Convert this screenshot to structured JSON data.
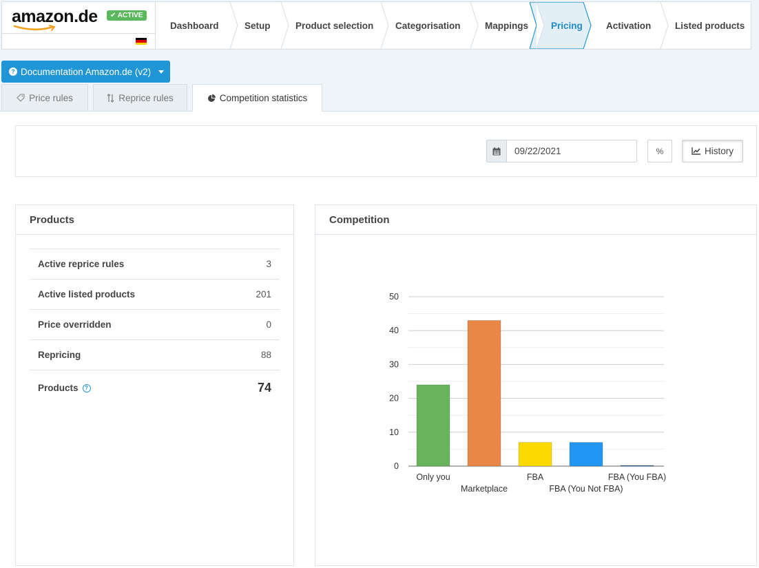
{
  "brand": {
    "logo": "amazon.de",
    "status": "ACTIVE",
    "status_color": "#5cb85c"
  },
  "steps": [
    {
      "label": "Dashboard",
      "active": false
    },
    {
      "label": "Setup",
      "active": false
    },
    {
      "label": "Product selection",
      "active": false
    },
    {
      "label": "Categorisation",
      "active": false
    },
    {
      "label": "Mappings",
      "active": false
    },
    {
      "label": "Pricing",
      "active": true
    },
    {
      "label": "Activation",
      "active": false
    },
    {
      "label": "Listed products",
      "active": false
    }
  ],
  "site_dropdown": {
    "label": "Documentation Amazon.de (v2)"
  },
  "subtabs": [
    {
      "label": "Price rules",
      "icon": "tag-icon",
      "active": false
    },
    {
      "label": "Reprice rules",
      "icon": "sort-icon",
      "active": false
    },
    {
      "label": "Competition statistics",
      "icon": "pie-chart-icon",
      "active": true
    }
  ],
  "filter": {
    "date": "09/22/2021",
    "percent_label": "%",
    "history_label": "History"
  },
  "products_panel": {
    "title": "Products",
    "rows": [
      {
        "label": "Active reprice rules",
        "value": "3"
      },
      {
        "label": "Active listed products",
        "value": "201"
      },
      {
        "label": "Price overridden",
        "value": "0"
      },
      {
        "label": "Repricing",
        "value": "88"
      }
    ],
    "total": {
      "label": "Products",
      "value": "74"
    }
  },
  "competition_panel": {
    "title": "Competition"
  },
  "chart_data": {
    "type": "bar",
    "categories": [
      "Only you",
      "Marketplace",
      "FBA",
      "FBA (You Not FBA)",
      "FBA (You FBA)"
    ],
    "values": [
      24,
      43,
      7,
      7,
      0.2
    ],
    "colors": [
      "#6ab35d",
      "#e98746",
      "#fcd900",
      "#2196f3",
      "#1e5f9e"
    ],
    "yticks": [
      0,
      10,
      20,
      30,
      40,
      50
    ],
    "ylim": [
      0,
      50
    ],
    "grid": true,
    "title": "",
    "xlabel": "",
    "ylabel": ""
  }
}
